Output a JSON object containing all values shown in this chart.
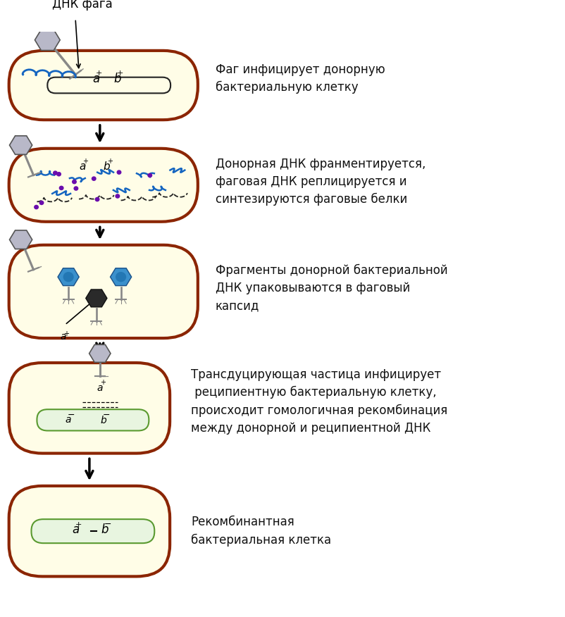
{
  "bg_color": "#ffffff",
  "cell_outer_color": "#8B2500",
  "cell_inner_color": "#FFFDE7",
  "phage_head_color": "#B8B8C8",
  "phage_tail_color": "#888888",
  "blue_dna_color": "#1565C0",
  "black_dna_color": "#222222",
  "dot_color": "#6A0DAD",
  "green_chrom_color": "#5A9A30",
  "green_chrom_fill": "#E8F5E0",
  "text_color": "#111111",
  "arrow_color": "#111111",
  "label1": "Фаг инфицирует донорную\nбактериальную клетку",
  "label2": "Донорная ДНК франментируется,\nфаговая ДНК реплицируется и\nсинтезируются фаговые белки",
  "label3": "Фрагменты донорной бактериальной\nДНК упаковываются в фаговый\nкапсид",
  "label4": "Трансдуцирующая частица инфицирует\n реципиентную бактериальную клетку,\nпроисходит гомологичная рекомбинация\nмежду донорной и реципиентной ДНК",
  "label5": "Рекомбинантная\nбактериальная клетка",
  "dnk_faga": "ДНК фага"
}
